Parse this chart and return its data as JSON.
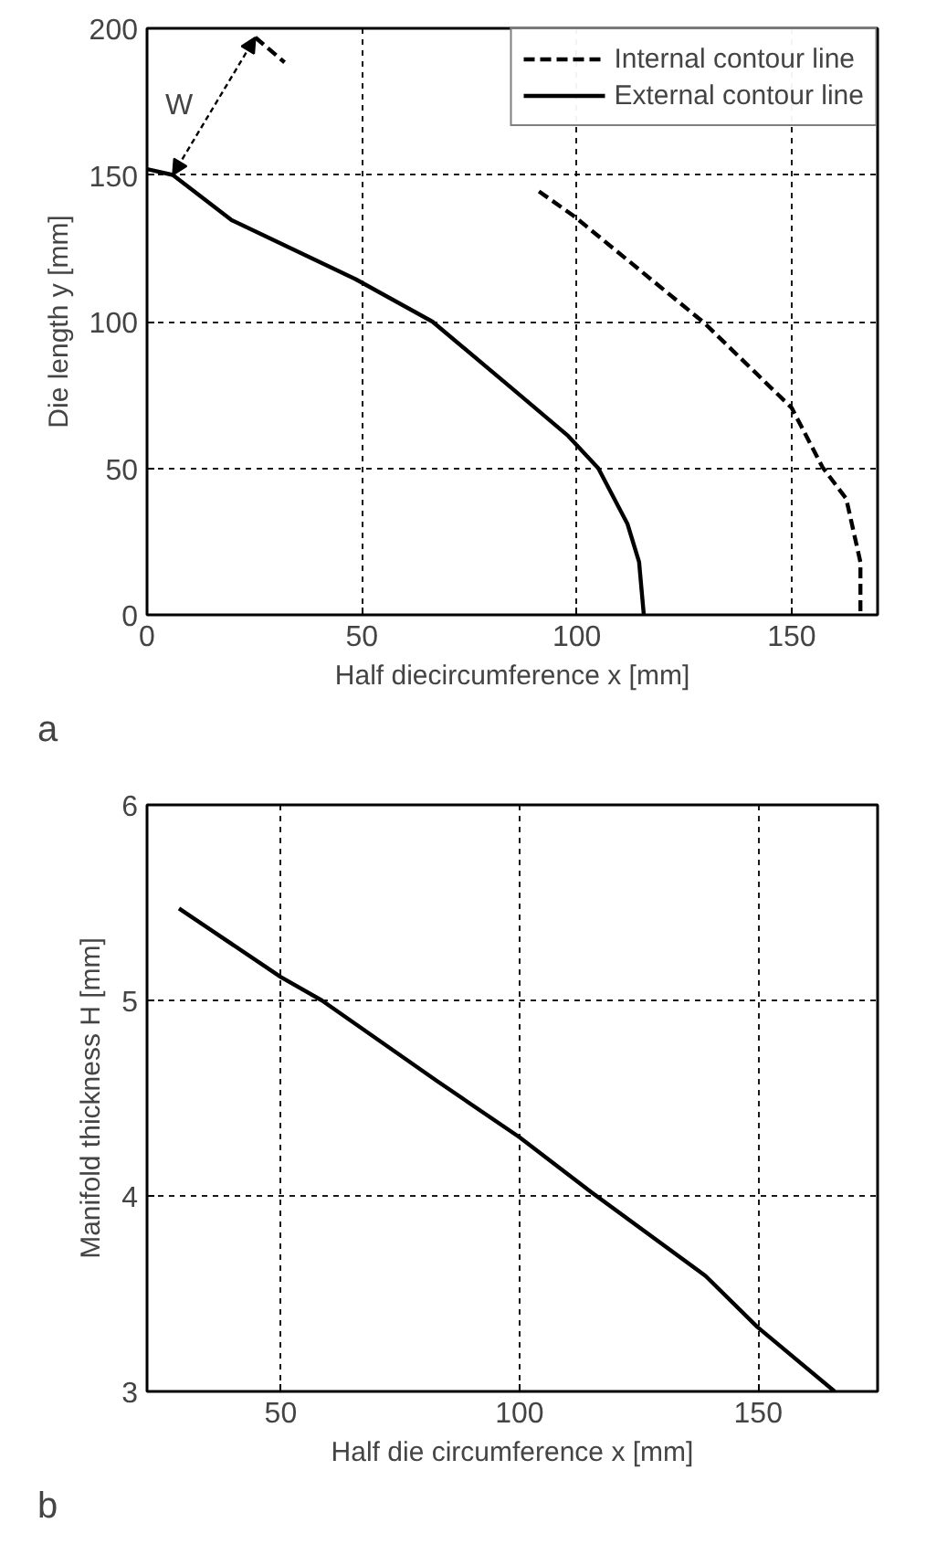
{
  "chart_data": [
    {
      "type": "line",
      "xlabel": "Half diecircumference x [mm]",
      "ylabel": "Die length y [mm]",
      "xlim": [
        0,
        170
      ],
      "ylim": [
        0,
        200
      ],
      "xticks": [
        0,
        50,
        100,
        150
      ],
      "yticks": [
        0,
        50,
        100,
        150,
        200
      ],
      "grid": true,
      "legend": "top right",
      "series": [
        {
          "name": "Internal contour line",
          "color": "#000000",
          "line_style": "dashed",
          "x": [
            25.2,
            32,
            null,
            91.2,
            99.4,
            129.7,
            150,
            157.2,
            162.7,
            166,
            166
          ],
          "values": [
            196.9,
            188.4,
            null,
            144.4,
            135.9,
            99.5,
            70.6,
            50.3,
            39.6,
            18,
            0
          ]
        },
        {
          "name": "External contour line",
          "color": "#000000",
          "line_style": "solid",
          "x": [
            0,
            6,
            19.7,
            48.5,
            66.4,
            84.3,
            98,
            105,
            111.8,
            114.5,
            115.6
          ],
          "values": [
            152,
            150,
            134.6,
            114.5,
            100,
            78,
            61,
            50,
            31,
            18,
            0
          ]
        }
      ],
      "annotations": [
        "W",
        "a"
      ]
    },
    {
      "type": "line",
      "xlabel": "Half die circumference x [mm]",
      "ylabel": "Manifold thickness H [mm]",
      "xlim": [
        22,
        175
      ],
      "ylim": [
        3,
        6
      ],
      "xticks": [
        50,
        100,
        150
      ],
      "yticks": [
        3,
        4,
        5,
        6
      ],
      "grid": true,
      "series": [
        {
          "color": "#000000",
          "line_style": "solid",
          "x": [
            28.7,
            50,
            58.6,
            82.6,
            100,
            115,
            139,
            149.8,
            166
          ],
          "values": [
            5.47,
            5.12,
            5.0,
            4.59,
            4.3,
            4.02,
            3.59,
            3.33,
            3.0
          ]
        }
      ],
      "annotations": [
        "b"
      ]
    }
  ]
}
